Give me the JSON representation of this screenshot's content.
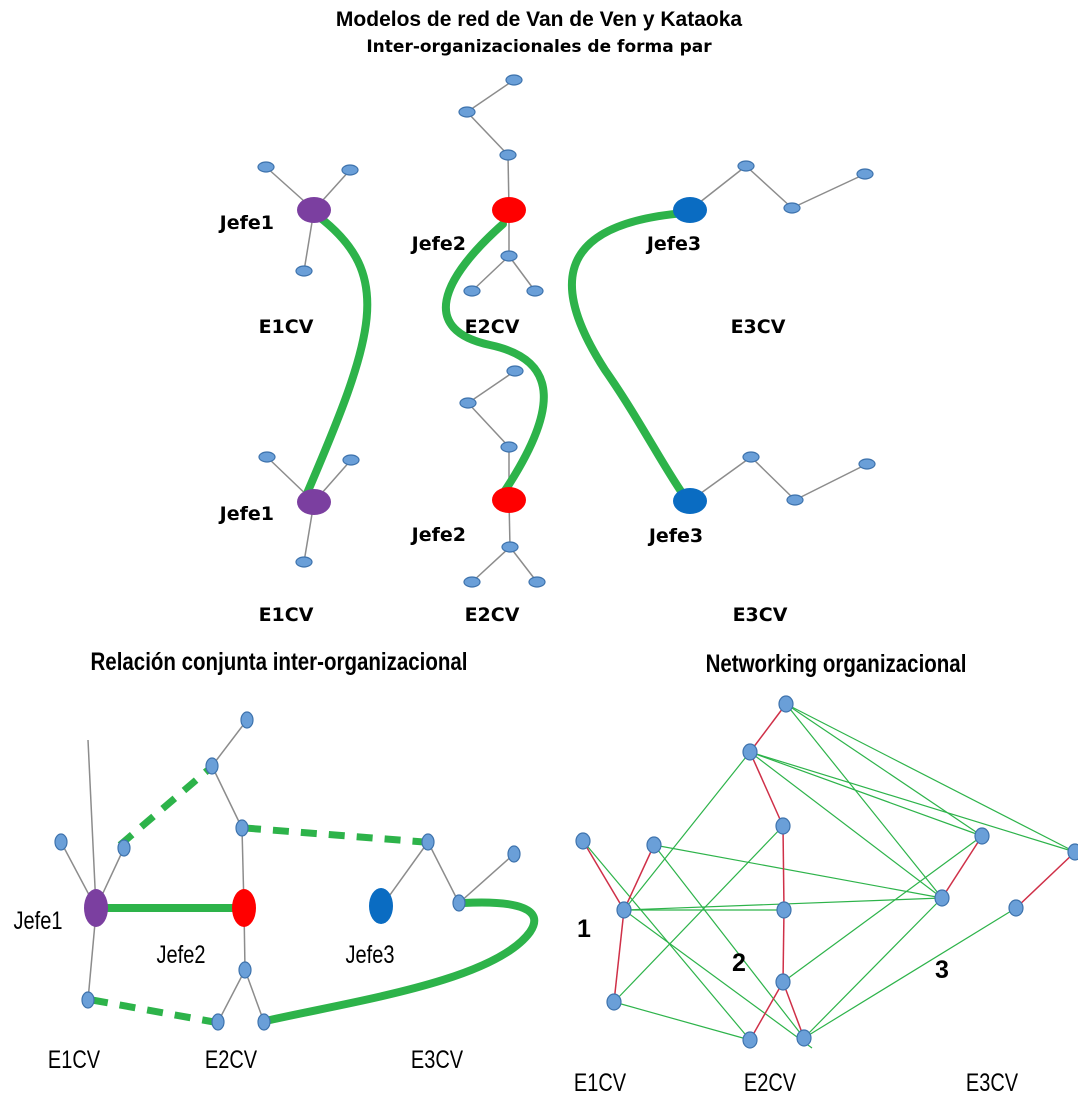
{
  "title": "Modelos de red de Van de Ven y Kataoka",
  "subtitle": "Inter-organizacionales de forma par",
  "top": {
    "jefe1_label": "Jefe1",
    "jefe2_label": "Jefe2",
    "jefe3_label": "Jefe3",
    "e1_label": "E1CV",
    "e2_label": "E2CV",
    "e3_label": "E3CV"
  },
  "left": {
    "heading": "Relación conjunta inter-organizacional",
    "jefe1_label": "Jefe1",
    "jefe2_label": "Jefe2",
    "jefe3_label": "Jefe3",
    "e1_label": "E1CV",
    "e2_label": "E2CV",
    "e3_label": "E3CV"
  },
  "right": {
    "heading": "Networking organizacional",
    "num1": "1",
    "num2": "2",
    "num3": "3",
    "e1_label": "E1CV",
    "e2_label": "E2CV",
    "e3_label": "E3CV"
  },
  "colors": {
    "purple": "#7b3fa0",
    "red": "#ff0000",
    "blue": "#0a6cc2",
    "node": "#6a9fd8",
    "green": "#2db34a",
    "red_edge": "#cf3048"
  }
}
